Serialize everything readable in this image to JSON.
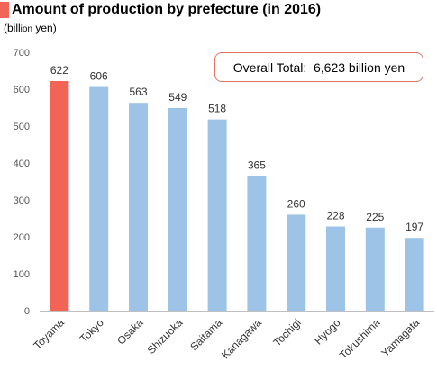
{
  "header": {
    "title": "Amount of production by prefecture (in 2016)",
    "unit_main": "(bill",
    "unit_small": "ion",
    "unit_end": " yen)"
  },
  "total_box": {
    "label": "Overall Total:  6,623 billion yen"
  },
  "colors": {
    "title_square": "#f26556",
    "highlight_bar": "#f26556",
    "default_bar": "#9dc3e6",
    "total_border": "#e0735f",
    "axis": "#bfbfbf"
  },
  "chart_data": {
    "type": "bar",
    "title": "Amount of production by prefecture (in 2016)",
    "ylabel": "(billion yen)",
    "xlabel": "",
    "categories": [
      "Toyama",
      "Tokyo",
      "Osaka",
      "Shizuoka",
      "Saitama",
      "Kanagawa",
      "Tochigi",
      "Hyogo",
      "Tokushima",
      "Yamagata"
    ],
    "values": [
      622,
      606,
      563,
      549,
      518,
      365,
      260,
      228,
      225,
      197
    ],
    "highlight_index": 0,
    "ylim": [
      0,
      700
    ],
    "yticks": [
      0,
      100,
      200,
      300,
      400,
      500,
      600,
      700
    ],
    "grid": false,
    "data_labels": true
  }
}
